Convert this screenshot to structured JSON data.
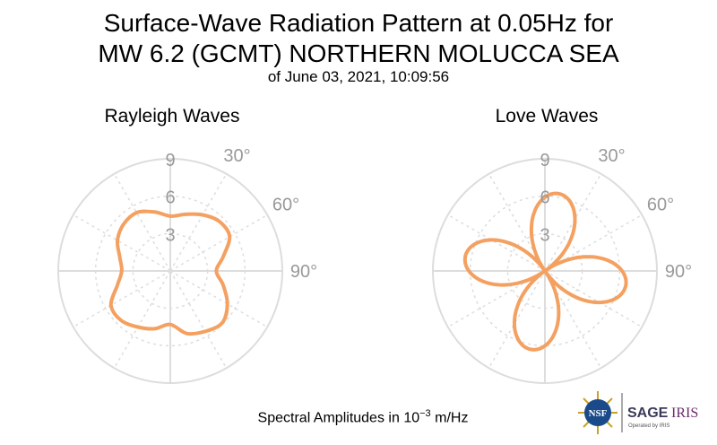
{
  "header": {
    "title_line1": "Surface-Wave Radiation Pattern at 0.05Hz for",
    "title_line2": "MW 6.2 (GCMT) NORTHERN MOLUCCA SEA",
    "subtitle": "of June 03, 2021, 10:09:56"
  },
  "footer": {
    "units_prefix": "Spectral Amplitudes in",
    "units_base": "10",
    "units_exp": "−3",
    "units_suffix": "m/Hz"
  },
  "logos": {
    "nsf": "NSF",
    "sage": "SAGE",
    "iris": "IRIS",
    "operated": "Operated by IRIS"
  },
  "colors": {
    "pattern": "#f4a060",
    "grid": "#dddddd",
    "tick_text": "#999999"
  },
  "chart_data": [
    {
      "type": "polar",
      "title": "Rayleigh Waves",
      "radial_ticks": [
        "3",
        "6",
        "9"
      ],
      "r_max": 9,
      "angle_ticks": [
        "30°",
        "60°",
        "90°"
      ],
      "series": [
        {
          "theta_deg": [
            0,
            15,
            30,
            45,
            60,
            75,
            90,
            105,
            120,
            135,
            150,
            165,
            180,
            195,
            210,
            225,
            240,
            255,
            270,
            285,
            300,
            315,
            330,
            345
          ],
          "r": [
            4.4,
            4.7,
            5.2,
            5.6,
            5.5,
            4.4,
            3.7,
            4.4,
            5.3,
            5.9,
            5.6,
            5.2,
            4.3,
            4.8,
            5.2,
            5.6,
            5.5,
            4.4,
            3.9,
            4.2,
            4.9,
            5.3,
            5.4,
            4.9
          ]
        }
      ]
    },
    {
      "type": "polar",
      "title": "Love Waves",
      "radial_ticks": [
        "3",
        "6",
        "9"
      ],
      "r_max": 9,
      "angle_ticks": [
        "30°",
        "60°",
        "90°"
      ],
      "series": [
        {
          "petals": [
            {
              "peak_deg": 10,
              "peak_r": 6.3,
              "half_width_deg": 45
            },
            {
              "peak_deg": 100,
              "peak_r": 6.6,
              "half_width_deg": 45
            },
            {
              "peak_deg": 190,
              "peak_r": 6.4,
              "half_width_deg": 45
            },
            {
              "peak_deg": 280,
              "peak_r": 6.5,
              "half_width_deg": 45
            }
          ]
        }
      ]
    }
  ]
}
